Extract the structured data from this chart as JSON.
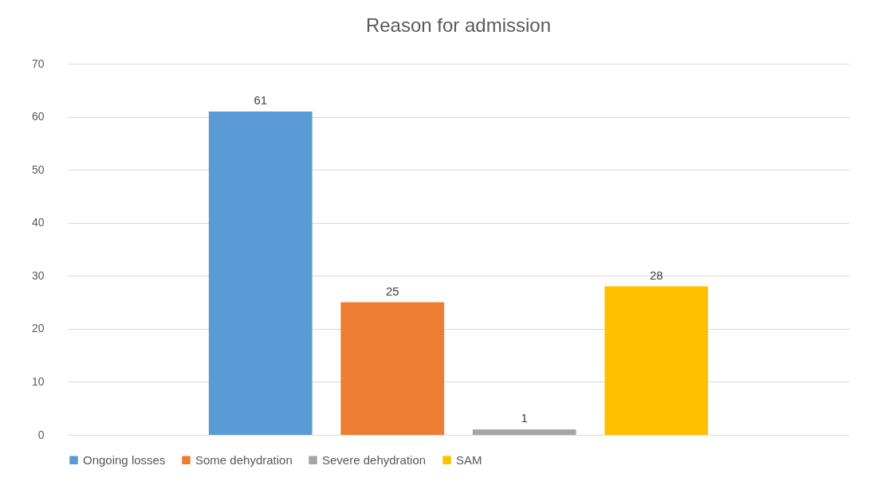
{
  "chart_data": {
    "type": "bar",
    "title": "Reason for admission",
    "categories": [
      null
    ],
    "series": [
      {
        "name": "Ongoing losses",
        "color": "#5b9bd5",
        "values": [
          61
        ]
      },
      {
        "name": "Some dehydration",
        "color": "#ed7d31",
        "values": [
          25
        ]
      },
      {
        "name": "Severe dehydration",
        "color": "#a5a5a5",
        "values": [
          1
        ]
      },
      {
        "name": "SAM",
        "color": "#ffc000",
        "values": [
          28
        ]
      }
    ],
    "ylim": [
      0,
      70
    ],
    "yticks": [
      0,
      10,
      20,
      30,
      40,
      50,
      60,
      70
    ],
    "grid": "y",
    "legend": "bottom",
    "data_labels": true
  }
}
